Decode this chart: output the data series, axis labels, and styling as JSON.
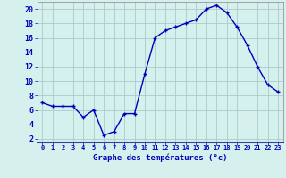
{
  "hours": [
    0,
    1,
    2,
    3,
    4,
    5,
    6,
    7,
    8,
    9,
    10,
    11,
    12,
    13,
    14,
    15,
    16,
    17,
    18,
    19,
    20,
    21,
    22,
    23
  ],
  "temps": [
    7.0,
    6.5,
    6.5,
    6.5,
    5.0,
    6.0,
    2.5,
    3.0,
    5.5,
    5.5,
    11.0,
    16.0,
    17.0,
    17.5,
    18.0,
    18.5,
    20.0,
    20.5,
    19.5,
    17.5,
    15.0,
    12.0,
    9.5,
    8.5
  ],
  "line_color": "#0000bb",
  "marker": "+",
  "bg_color": "#d6f0ee",
  "grid_color": "#aacccc",
  "axis_line_color": "#334499",
  "xlabel": "Graphe des températures (°c)",
  "xlabel_color": "#0000bb",
  "tick_color": "#0000bb",
  "ylim": [
    1.5,
    21.0
  ],
  "yticks": [
    2,
    4,
    6,
    8,
    10,
    12,
    14,
    16,
    18,
    20
  ],
  "xlim": [
    -0.5,
    23.5
  ],
  "title_bg": "#3355aa",
  "marker_size": 3,
  "linewidth": 1.0
}
